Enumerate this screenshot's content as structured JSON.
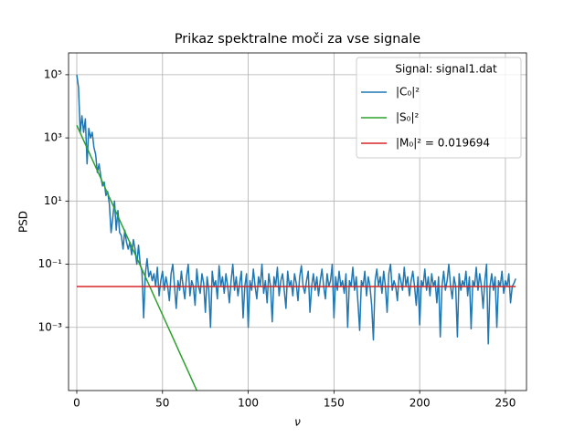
{
  "chart_data": {
    "type": "line",
    "title": "Prikaz spektralne moči za vse signale",
    "xlabel": "ν",
    "ylabel": "PSD",
    "xlim": [
      -4.8,
      262.3
    ],
    "xticks": [
      0,
      50,
      100,
      150,
      200,
      250
    ],
    "ylim": [
      1e-05,
      490000
    ],
    "yscale": "log",
    "yticks": [
      {
        "value": 100000,
        "label": "10⁵"
      },
      {
        "value": 1000,
        "label": "10³"
      },
      {
        "value": 10,
        "label": "10¹"
      },
      {
        "value": 0.1,
        "label": "10⁻¹"
      },
      {
        "value": 0.001,
        "label": "10⁻³"
      }
    ],
    "grid": true,
    "legend": "upper right",
    "legend_title": "Signal: signal1.dat",
    "series": [
      {
        "name": "|C₀|²",
        "color": "#1f77b4",
        "x": [
          0,
          1,
          2,
          3,
          4,
          5,
          6,
          7,
          8,
          9,
          10,
          11,
          12,
          13,
          14,
          15,
          16,
          17,
          18,
          19,
          20,
          21,
          22,
          23,
          24,
          25,
          26,
          27,
          28,
          29,
          30,
          31,
          32,
          33,
          34,
          35,
          36,
          37,
          38,
          39,
          40,
          41,
          42,
          43,
          44,
          45,
          46,
          47,
          48,
          49,
          50,
          51,
          52,
          53,
          54,
          55,
          56,
          57,
          58,
          59,
          60,
          61,
          62,
          63,
          64,
          65,
          66,
          67,
          68,
          69,
          70,
          71,
          72,
          73,
          74,
          75,
          76,
          77,
          78,
          79,
          80,
          81,
          82,
          83,
          84,
          85,
          86,
          87,
          88,
          89,
          90,
          91,
          92,
          93,
          94,
          95,
          96,
          97,
          98,
          99,
          100,
          101,
          102,
          103,
          104,
          105,
          106,
          107,
          108,
          109,
          110,
          111,
          112,
          113,
          114,
          115,
          116,
          117,
          118,
          119,
          120,
          121,
          122,
          123,
          124,
          125,
          126,
          127,
          128,
          129,
          130,
          131,
          132,
          133,
          134,
          135,
          136,
          137,
          138,
          139,
          140,
          141,
          142,
          143,
          144,
          145,
          146,
          147,
          148,
          149,
          150,
          151,
          152,
          153,
          154,
          155,
          156,
          157,
          158,
          159,
          160,
          161,
          162,
          163,
          164,
          165,
          166,
          167,
          168,
          169,
          170,
          171,
          172,
          173,
          174,
          175,
          176,
          177,
          178,
          179,
          180,
          181,
          182,
          183,
          184,
          185,
          186,
          187,
          188,
          189,
          190,
          191,
          192,
          193,
          194,
          195,
          196,
          197,
          198,
          199,
          200,
          201,
          202,
          203,
          204,
          205,
          206,
          207,
          208,
          209,
          210,
          211,
          212,
          213,
          214,
          215,
          216,
          217,
          218,
          219,
          220,
          221,
          222,
          223,
          224,
          225,
          226,
          227,
          228,
          229,
          230,
          231,
          232,
          233,
          234,
          235,
          236,
          237,
          238,
          239,
          240,
          241,
          242,
          243,
          244,
          245,
          246,
          247,
          248,
          249,
          250,
          251,
          252,
          253,
          254,
          255,
          256
        ],
        "values": [
          100000,
          40000,
          1500,
          5000,
          1500,
          4000,
          150,
          2000,
          1000,
          1500,
          500,
          300,
          80,
          150,
          60,
          30,
          40,
          15,
          20,
          8,
          1,
          3,
          10,
          1.2,
          5,
          1,
          0.8,
          0.3,
          1.2,
          0.5,
          0.3,
          0.5,
          0.2,
          0.6,
          0.3,
          0.1,
          0.4,
          0.1,
          0.06,
          0.002,
          0.05,
          0.15,
          0.04,
          0.06,
          0.03,
          0.05,
          0.02,
          0.08,
          0.01,
          0.03,
          0.06,
          0.015,
          0.04,
          0.02,
          0.007,
          0.05,
          0.1,
          0.02,
          0.004,
          0.03,
          0.015,
          0.06,
          0.02,
          0.008,
          0.04,
          0.1,
          0.01,
          0.03,
          0.02,
          0.005,
          0.07,
          0.02,
          0.012,
          0.05,
          0.025,
          0.003,
          0.04,
          0.015,
          0.001,
          0.06,
          0.02,
          0.03,
          0.008,
          0.09,
          0.02,
          0.04,
          0.012,
          0.05,
          0.02,
          0.006,
          0.03,
          0.1,
          0.015,
          0.04,
          0.01,
          0.025,
          0.06,
          0.002,
          0.02,
          0.05,
          0.001,
          0.03,
          0.015,
          0.07,
          0.02,
          0.008,
          0.04,
          0.02,
          0.1,
          0.012,
          0.03,
          0.006,
          0.05,
          0.02,
          0.0015,
          0.04,
          0.02,
          0.08,
          0.01,
          0.03,
          0.05,
          0.015,
          0.004,
          0.06,
          0.02,
          0.03,
          0.01,
          0.05,
          0.025,
          0.007,
          0.04,
          0.09,
          0.02,
          0.012,
          0.03,
          0.06,
          0.003,
          0.02,
          0.05,
          0.015,
          0.04,
          0.01,
          0.03,
          0.07,
          0.02,
          0.008,
          0.05,
          0.02,
          0.03,
          0.1,
          0.002,
          0.04,
          0.015,
          0.06,
          0.02,
          0.03,
          0.012,
          0.05,
          0.001,
          0.03,
          0.02,
          0.08,
          0.015,
          0.04,
          0.006,
          0.0008,
          0.03,
          0.02,
          0.06,
          0.01,
          0.04,
          0.02,
          0.005,
          0.0004,
          0.03,
          0.07,
          0.02,
          0.04,
          0.012,
          0.06,
          0.02,
          0.003,
          0.05,
          0.1,
          0.015,
          0.03,
          0.02,
          0.007,
          0.05,
          0.03,
          0.015,
          0.08,
          0.02,
          0.04,
          0.01,
          0.03,
          0.06,
          0.02,
          0.005,
          0.04,
          0.0012,
          0.03,
          0.02,
          0.07,
          0.015,
          0.04,
          0.01,
          0.05,
          0.02,
          0.03,
          0.006,
          0.04,
          0.0005,
          0.02,
          0.06,
          0.015,
          0.03,
          0.1,
          0.02,
          0.008,
          0.04,
          0.02,
          0.0005,
          0.05,
          0.015,
          0.03,
          0.02,
          0.06,
          0.01,
          0.04,
          0.0009,
          0.03,
          0.02,
          0.08,
          0.015,
          0.05,
          0.02,
          0.004,
          0.03,
          0.1,
          0.0003,
          0.02,
          0.05,
          0.015,
          0.04,
          0.001,
          0.03,
          0.02,
          0.06,
          0.012,
          0.03,
          0.02,
          0.05,
          0.006,
          0.02,
          0.025,
          0.035
        ]
      },
      {
        "name": "|S₀|²",
        "color": "#2ca02c",
        "x": [
          0,
          5,
          10,
          15,
          20,
          25,
          30,
          35,
          40,
          45,
          50,
          55,
          60,
          65,
          70,
          72
        ],
        "values": [
          2512,
          631,
          158,
          40,
          10,
          2.5,
          0.63,
          0.158,
          0.04,
          0.01,
          0.0025,
          0.00063,
          0.000158,
          4e-05,
          1e-05,
          5.75e-06
        ]
      },
      {
        "name": "|M₀|² = 0.019694",
        "color": "#d62728",
        "x": [
          0,
          256
        ],
        "values": [
          0.019694,
          0.019694
        ]
      }
    ]
  }
}
